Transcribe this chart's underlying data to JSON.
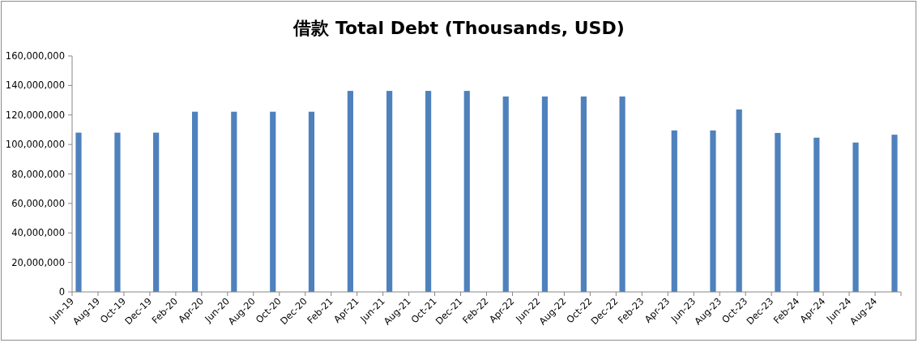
{
  "chart_data": {
    "type": "bar",
    "title": "借款 Total Debt (Thousands, USD)",
    "x": [
      "2019-06-16",
      "2019-09-16",
      "2019-12-16",
      "2020-03-16",
      "2020-06-16",
      "2020-09-16",
      "2020-12-16",
      "2021-03-16",
      "2021-06-16",
      "2021-09-16",
      "2021-12-16",
      "2022-03-16",
      "2022-06-16",
      "2022-09-16",
      "2022-12-16",
      "2023-04-16",
      "2023-07-16",
      "2023-09-16",
      "2023-12-16",
      "2024-03-16",
      "2024-06-16",
      "2024-09-16"
    ],
    "values": [
      108000000,
      108000000,
      108000000,
      122200000,
      122200000,
      122200000,
      122200000,
      136300000,
      136300000,
      136300000,
      136300000,
      132500000,
      132500000,
      132500000,
      132500000,
      109500000,
      109500000,
      123700000,
      107800000,
      104600000,
      101300000,
      106600000
    ],
    "color": "#4f81bd",
    "xlim": [
      "2019-06",
      "2024-10"
    ],
    "xticks": [
      {
        "value": "2019-06",
        "label": "Jun-19"
      },
      {
        "value": "2019-08",
        "label": "Aug-19"
      },
      {
        "value": "2019-10",
        "label": "Oct-19"
      },
      {
        "value": "2019-12",
        "label": "Dec-19"
      },
      {
        "value": "2020-02",
        "label": "Feb-20"
      },
      {
        "value": "2020-04",
        "label": "Apr-20"
      },
      {
        "value": "2020-06",
        "label": "Jun-20"
      },
      {
        "value": "2020-08",
        "label": "Aug-20"
      },
      {
        "value": "2020-10",
        "label": "Oct-20"
      },
      {
        "value": "2020-12",
        "label": "Dec-20"
      },
      {
        "value": "2021-02",
        "label": "Feb-21"
      },
      {
        "value": "2021-04",
        "label": "Apr-21"
      },
      {
        "value": "2021-06",
        "label": "Jun-21"
      },
      {
        "value": "2021-08",
        "label": "Aug-21"
      },
      {
        "value": "2021-10",
        "label": "Oct-21"
      },
      {
        "value": "2021-12",
        "label": "Dec-21"
      },
      {
        "value": "2022-02",
        "label": "Feb-22"
      },
      {
        "value": "2022-04",
        "label": "Apr-22"
      },
      {
        "value": "2022-06",
        "label": "Jun-22"
      },
      {
        "value": "2022-08",
        "label": "Aug-22"
      },
      {
        "value": "2022-10",
        "label": "Oct-22"
      },
      {
        "value": "2022-12",
        "label": "Dec-22"
      },
      {
        "value": "2023-02",
        "label": "Feb-23"
      },
      {
        "value": "2023-04",
        "label": "Apr-23"
      },
      {
        "value": "2023-06",
        "label": "Jun-23"
      },
      {
        "value": "2023-08",
        "label": "Aug-23"
      },
      {
        "value": "2023-10",
        "label": "Oct-23"
      },
      {
        "value": "2023-12",
        "label": "Dec-23"
      },
      {
        "value": "2024-02",
        "label": "Feb-24"
      },
      {
        "value": "2024-04",
        "label": "Apr-24"
      },
      {
        "value": "2024-06",
        "label": "Jun-24"
      },
      {
        "value": "2024-08",
        "label": "Aug-24"
      },
      {
        "value": "2024-10",
        "label": null
      }
    ],
    "ylim": [
      0,
      160000000
    ],
    "yticks": [
      {
        "value": 0,
        "label": "0"
      },
      {
        "value": 20000000,
        "label": "20,000,000"
      },
      {
        "value": 40000000,
        "label": "40,000,000"
      },
      {
        "value": 60000000,
        "label": "60,000,000"
      },
      {
        "value": 80000000,
        "label": "80,000,000"
      },
      {
        "value": 100000000,
        "label": "100,000,000"
      },
      {
        "value": 120000000,
        "label": "120,000,000"
      },
      {
        "value": 140000000,
        "label": "140,000,000"
      },
      {
        "value": 160000000,
        "label": "160,000,000"
      }
    ]
  }
}
